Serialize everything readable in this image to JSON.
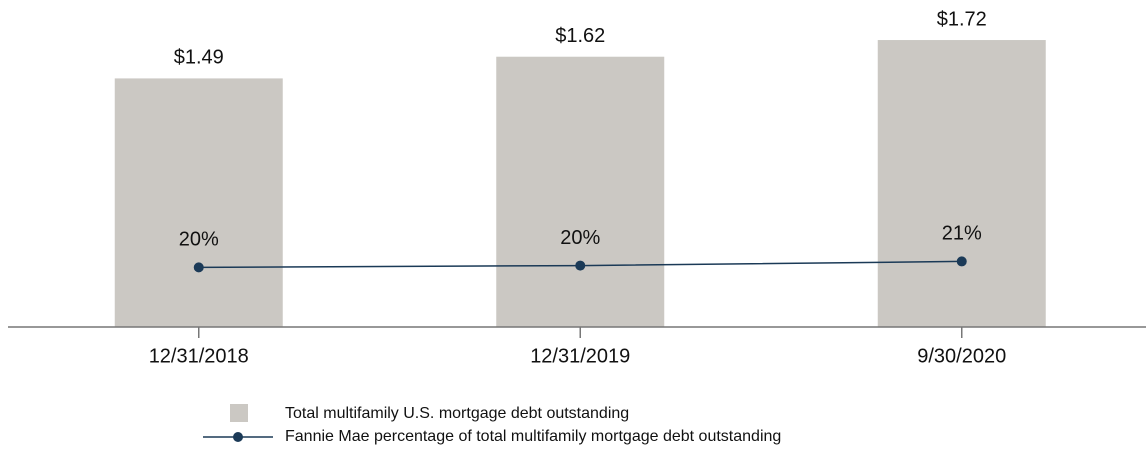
{
  "chart_data": {
    "type": "bar",
    "categories": [
      "12/31/2018",
      "12/31/2019",
      "9/30/2020"
    ],
    "ylim": [
      0,
      1.93
    ],
    "y2lim": [
      10,
      64
    ],
    "series": [
      {
        "name": "Total multifamily U.S. mortgage debt outstanding",
        "type": "bar",
        "color": "#cbc8c3",
        "values": [
          1.49,
          1.62,
          1.72
        ],
        "value_labels": [
          "$1.49",
          "$1.62",
          "$1.72"
        ]
      },
      {
        "name": "Fannie Mae percentage of total multifamily mortgage debt outstanding",
        "type": "line",
        "axis": "y2",
        "color": "#1b3a57",
        "values": [
          20,
          20.3,
          21
        ],
        "value_labels": [
          "20%",
          "20%",
          "21%"
        ]
      }
    ]
  }
}
